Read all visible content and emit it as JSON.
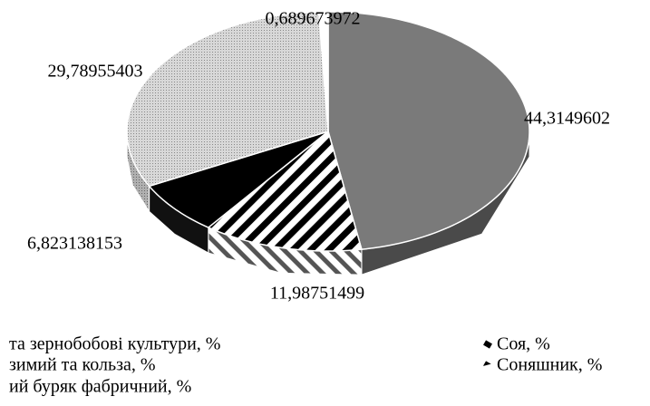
{
  "chart_data": {
    "type": "pie3d",
    "categories": [
      "та зернобобові культури, %",
      "Соняшник, %",
      "Соя, %",
      "зимий та кольза, %",
      "ий буряк фабричний, %"
    ],
    "values": [
      44.3149602,
      11.98751499,
      6.823138153,
      29.78955403,
      0.689673972
    ],
    "value_labels": [
      "44,3149602",
      "11,98751499",
      "6,823138153",
      "29,78955403",
      "0,689673972"
    ],
    "colors": [
      "#7a7a7a",
      "stripes",
      "#000000",
      "dots",
      "#ffffff"
    ]
  }
}
